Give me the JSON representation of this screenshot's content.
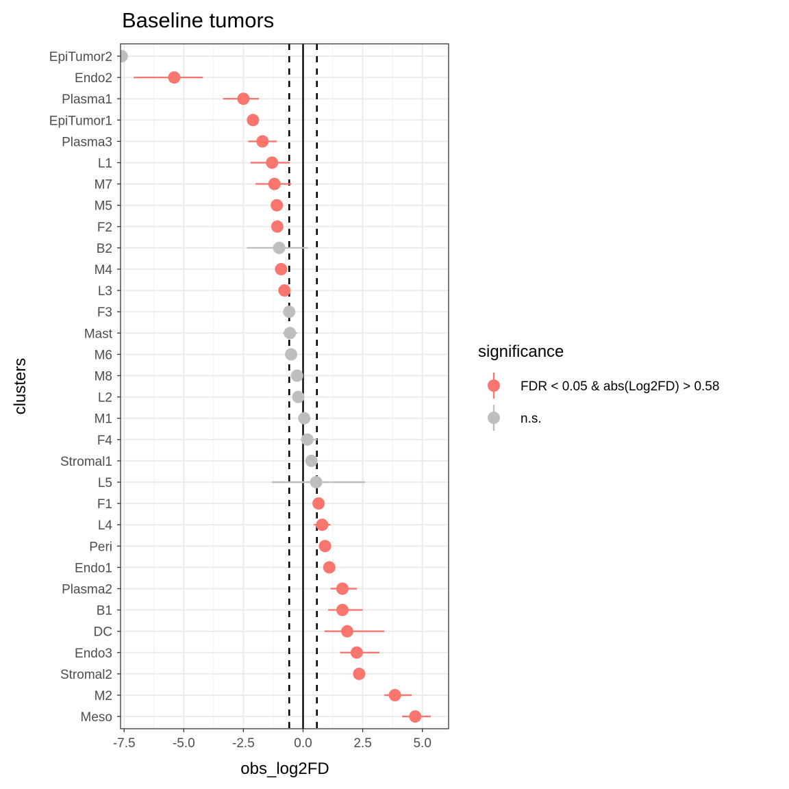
{
  "chart_data": {
    "type": "scatter",
    "title": "Baseline tumors",
    "xlabel": "obs_log2FD",
    "ylabel": "clusters",
    "xlim": [
      -7.65,
      6.1
    ],
    "x_ticks": [
      -7.5,
      -5.0,
      -2.5,
      0.0,
      2.5,
      5.0
    ],
    "x_tick_labels": [
      "-7.5",
      "-5.0",
      "-2.5",
      "0.0",
      "2.5",
      "5.0"
    ],
    "reference_lines": {
      "solid": 0.0,
      "dashed": [
        -0.58,
        0.58
      ]
    },
    "grid": true,
    "legend": {
      "title": "significance",
      "placement": "right",
      "entries": [
        {
          "label": "FDR < 0.05 & abs(Log2FD) > 0.58",
          "color": "#F8766D"
        },
        {
          "label": "n.s.",
          "color": "#BEBEBE"
        }
      ]
    },
    "colors": {
      "significant": "#F8766D",
      "ns": "#BEBEBE"
    },
    "points": [
      {
        "cluster": "EpiTumor2",
        "value": -7.6,
        "low": null,
        "high": null,
        "sig": false
      },
      {
        "cluster": "Endo2",
        "value": -5.4,
        "low": -7.1,
        "high": -4.2,
        "sig": true
      },
      {
        "cluster": "Plasma1",
        "value": -2.5,
        "low": -3.35,
        "high": -1.85,
        "sig": true
      },
      {
        "cluster": "EpiTumor1",
        "value": -2.1,
        "low": null,
        "high": null,
        "sig": true
      },
      {
        "cluster": "Plasma3",
        "value": -1.7,
        "low": -2.3,
        "high": -1.1,
        "sig": true
      },
      {
        "cluster": "L1",
        "value": -1.3,
        "low": -2.2,
        "high": -0.55,
        "sig": true
      },
      {
        "cluster": "M7",
        "value": -1.2,
        "low": -2.0,
        "high": -0.5,
        "sig": true
      },
      {
        "cluster": "M5",
        "value": -1.1,
        "low": null,
        "high": null,
        "sig": true
      },
      {
        "cluster": "F2",
        "value": -1.08,
        "low": null,
        "high": null,
        "sig": true
      },
      {
        "cluster": "B2",
        "value": -1.0,
        "low": -2.35,
        "high": 0.2,
        "sig": false
      },
      {
        "cluster": "M4",
        "value": -0.92,
        "low": null,
        "high": null,
        "sig": true
      },
      {
        "cluster": "L3",
        "value": -0.78,
        "low": null,
        "high": null,
        "sig": true
      },
      {
        "cluster": "F3",
        "value": -0.58,
        "low": null,
        "high": null,
        "sig": false
      },
      {
        "cluster": "Mast",
        "value": -0.55,
        "low": -0.85,
        "high": -0.25,
        "sig": false
      },
      {
        "cluster": "M6",
        "value": -0.5,
        "low": null,
        "high": null,
        "sig": false
      },
      {
        "cluster": "M8",
        "value": -0.25,
        "low": null,
        "high": null,
        "sig": false
      },
      {
        "cluster": "L2",
        "value": -0.2,
        "low": null,
        "high": null,
        "sig": false
      },
      {
        "cluster": "M1",
        "value": 0.05,
        "low": null,
        "high": null,
        "sig": false
      },
      {
        "cluster": "F4",
        "value": 0.18,
        "low": -0.1,
        "high": 0.6,
        "sig": false
      },
      {
        "cluster": "Stromal1",
        "value": 0.35,
        "low": null,
        "high": null,
        "sig": false
      },
      {
        "cluster": "L5",
        "value": 0.55,
        "low": -1.3,
        "high": 2.6,
        "sig": false
      },
      {
        "cluster": "F1",
        "value": 0.65,
        "low": null,
        "high": null,
        "sig": true
      },
      {
        "cluster": "L4",
        "value": 0.8,
        "low": 0.45,
        "high": 1.15,
        "sig": true
      },
      {
        "cluster": "Peri",
        "value": 0.92,
        "low": null,
        "high": null,
        "sig": true
      },
      {
        "cluster": "Endo1",
        "value": 1.1,
        "low": null,
        "high": null,
        "sig": true
      },
      {
        "cluster": "Plasma2",
        "value": 1.65,
        "low": 1.15,
        "high": 2.25,
        "sig": true
      },
      {
        "cluster": "B1",
        "value": 1.65,
        "low": 1.05,
        "high": 2.5,
        "sig": true
      },
      {
        "cluster": "DC",
        "value": 1.85,
        "low": 0.9,
        "high": 3.4,
        "sig": true
      },
      {
        "cluster": "Endo3",
        "value": 2.25,
        "low": 1.55,
        "high": 3.2,
        "sig": true
      },
      {
        "cluster": "Stromal2",
        "value": 2.35,
        "low": null,
        "high": null,
        "sig": true
      },
      {
        "cluster": "M2",
        "value": 3.85,
        "low": 3.4,
        "high": 4.55,
        "sig": true
      },
      {
        "cluster": "Meso",
        "value": 4.7,
        "low": 4.15,
        "high": 5.35,
        "sig": true
      }
    ]
  }
}
